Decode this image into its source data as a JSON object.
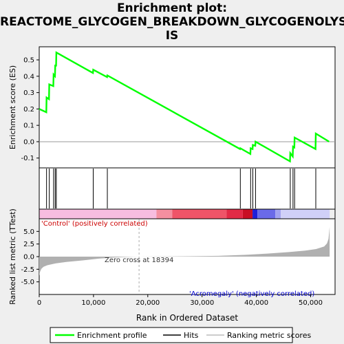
{
  "chart_data": {
    "type": "line",
    "title_lines": [
      "Enrichment plot:",
      "REACTOME_GLYCOGEN_BREAKDOWN_GLYCOGENOLYS",
      "IS"
    ],
    "x_label": "Rank in Ordered Dataset",
    "x_range": [
      0,
      54500
    ],
    "x_ticks": [
      0,
      10000,
      20000,
      30000,
      40000,
      50000
    ],
    "x_tick_labels": [
      "0",
      "10,000",
      "20,000",
      "30,000",
      "40,000",
      "50,000"
    ],
    "es_panel": {
      "ylabel": "Enrichment score (ES)",
      "ylim": [
        -0.16,
        0.58
      ],
      "yticks": [
        -0.1,
        0.0,
        0.1,
        0.2,
        0.3,
        0.4,
        0.5
      ],
      "ytick_labels": [
        "-0.1",
        "0.0",
        "0.1",
        "0.2",
        "0.3",
        "0.4",
        "0.5"
      ],
      "series_name": "Enrichment profile",
      "color": "#00ff00",
      "x": [
        0,
        1300,
        1350,
        1800,
        1850,
        2600,
        2650,
        2900,
        2950,
        3100,
        3150,
        9900,
        9950,
        12500,
        12550,
        37000,
        37050,
        38900,
        38950,
        39300,
        39350,
        39800,
        39850,
        46200,
        46250,
        46700,
        46750,
        47000,
        47050,
        50900,
        50950,
        53400
      ],
      "y": [
        0.2,
        0.18,
        0.27,
        0.26,
        0.35,
        0.34,
        0.41,
        0.4,
        0.47,
        0.46,
        0.545,
        0.42,
        0.44,
        0.395,
        0.405,
        -0.045,
        -0.04,
        -0.075,
        -0.04,
        -0.045,
        -0.02,
        -0.025,
        0.0,
        -0.12,
        -0.07,
        -0.09,
        -0.03,
        -0.035,
        0.025,
        -0.045,
        0.05,
        0.0
      ]
    },
    "hits": [
      1350,
      1850,
      2650,
      2950,
      3150,
      9950,
      12550,
      37050,
      38950,
      39350,
      39850,
      46250,
      46750,
      47050,
      50950
    ],
    "heat_segments": [
      {
        "x0": 0,
        "x1": 21600,
        "color": "#f7bde0"
      },
      {
        "x0": 21600,
        "x1": 24500,
        "color": "#f48fa0"
      },
      {
        "x0": 24500,
        "x1": 34500,
        "color": "#ef5468"
      },
      {
        "x0": 34500,
        "x1": 37500,
        "color": "#e22a46"
      },
      {
        "x0": 37500,
        "x1": 39300,
        "color": "#c80f24"
      },
      {
        "x0": 39300,
        "x1": 40200,
        "color": "#1e1ed8"
      },
      {
        "x0": 40200,
        "x1": 43500,
        "color": "#6a6ae8"
      },
      {
        "x0": 43500,
        "x1": 44500,
        "color": "#a2a2f0"
      },
      {
        "x0": 44500,
        "x1": 53500,
        "color": "#d0d0f8"
      }
    ],
    "metric_panel": {
      "ylabel": "Ranked list metric (TTest)",
      "ylim": [
        -7.5,
        7.5
      ],
      "yticks": [
        -5.0,
        -2.5,
        0.0,
        2.5,
        5.0
      ],
      "ytick_labels": [
        "-5.0",
        "-2.5",
        "0.0",
        "2.5",
        "5.0"
      ],
      "color": "#b0b0b0",
      "x": [
        0,
        150,
        400,
        800,
        1500,
        3000,
        5000,
        8000,
        11000,
        14000,
        17000,
        18394,
        22000,
        28000,
        33000,
        38000,
        42000,
        46000,
        49000,
        51000,
        52500,
        53000,
        53300,
        53500
      ],
      "y": [
        -3.8,
        -3.0,
        -2.4,
        -2.0,
        -1.7,
        -1.35,
        -1.05,
        -0.75,
        -0.4,
        -0.15,
        -0.04,
        0.0,
        0.03,
        0.08,
        0.15,
        0.35,
        0.6,
        0.9,
        1.2,
        1.5,
        2.0,
        2.6,
        3.5,
        5.9
      ],
      "label_positive": "'Control' (positively correlated)",
      "label_negative": "'Acromegaly' (negatively correlated)",
      "zero_cross_label": "Zero cross at 18394",
      "zero_cross_x": 18394
    },
    "legend": {
      "placement": "bottom",
      "entries": [
        "Enrichment profile",
        "Hits",
        "Ranking metric scores"
      ]
    }
  }
}
